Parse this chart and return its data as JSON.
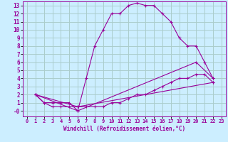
{
  "xlabel": "Windchill (Refroidissement éolien,°C)",
  "bg_color": "#cceeff",
  "line_color": "#990099",
  "grid_color": "#aacccc",
  "xlim": [
    -0.5,
    23.5
  ],
  "ylim": [
    -0.7,
    13.5
  ],
  "xticks": [
    0,
    1,
    2,
    3,
    4,
    5,
    6,
    7,
    8,
    9,
    10,
    11,
    12,
    13,
    14,
    15,
    16,
    17,
    18,
    19,
    20,
    21,
    22,
    23
  ],
  "yticks": [
    0,
    1,
    2,
    3,
    4,
    5,
    6,
    7,
    8,
    9,
    10,
    11,
    12,
    13
  ],
  "ytick_labels": [
    "-0",
    "1",
    "2",
    "3",
    "4",
    "5",
    "6",
    "7",
    "8",
    "9",
    "10",
    "11",
    "12",
    "13"
  ],
  "lines": [
    {
      "x": [
        1,
        2,
        3,
        4,
        5,
        6,
        7,
        8,
        9,
        10,
        11,
        12,
        13,
        14,
        15,
        16,
        17,
        18,
        19,
        20,
        21,
        22
      ],
      "y": [
        2,
        1,
        1,
        1,
        1,
        0,
        4,
        8,
        10,
        12,
        12,
        13,
        13.3,
        13,
        13,
        12,
        11,
        9,
        8,
        8,
        6,
        4
      ]
    },
    {
      "x": [
        1,
        2,
        3,
        4,
        5,
        6,
        7,
        8,
        9,
        10,
        11,
        12,
        13,
        14,
        15,
        16,
        17,
        18,
        19,
        20,
        21,
        22
      ],
      "y": [
        2,
        1,
        0.5,
        0.5,
        0.5,
        0.5,
        0.5,
        0.5,
        0.5,
        1,
        1,
        1.5,
        2,
        2,
        2.5,
        3,
        3.5,
        4,
        4,
        4.5,
        4.5,
        3.5
      ]
    },
    {
      "x": [
        1,
        6,
        22
      ],
      "y": [
        2,
        0.5,
        3.5
      ]
    },
    {
      "x": [
        1,
        6,
        20,
        22
      ],
      "y": [
        2,
        0,
        6,
        4
      ]
    }
  ]
}
